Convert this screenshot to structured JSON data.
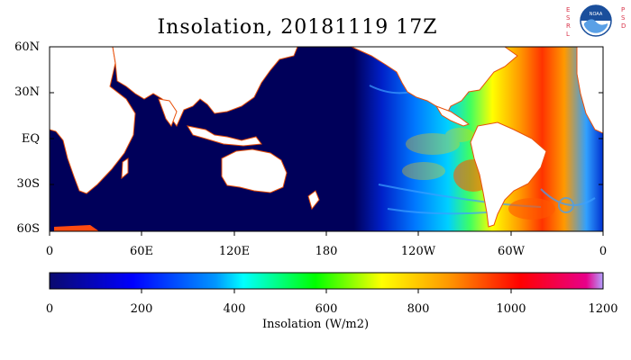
{
  "title": "Insolation, 20181119 17Z",
  "logo": {
    "brand_letters_left": [
      "E",
      "S",
      "R",
      "L"
    ],
    "brand_letters_right": [
      "P",
      "S",
      "D"
    ],
    "emblem": "NOAA",
    "color_primary": "#1a4f9c",
    "color_letters": "#d9364b"
  },
  "map": {
    "lat_ticks": [
      "60N",
      "30N",
      "EQ",
      "30S",
      "60S"
    ],
    "lon_ticks": [
      "0",
      "60E",
      "120E",
      "180",
      "120W",
      "60W",
      "0"
    ]
  },
  "colorbar": {
    "ticks": [
      "0",
      "200",
      "400",
      "600",
      "800",
      "1000",
      "1200"
    ],
    "label": "Insolation (W/m2)",
    "range": [
      0,
      1200
    ],
    "colors": [
      "#0a0a6e",
      "#0000ff",
      "#0096ff",
      "#00ffff",
      "#00ff00",
      "#ffff00",
      "#ff9900",
      "#ff0000",
      "#e8008a",
      "#b4a0ff"
    ]
  }
}
